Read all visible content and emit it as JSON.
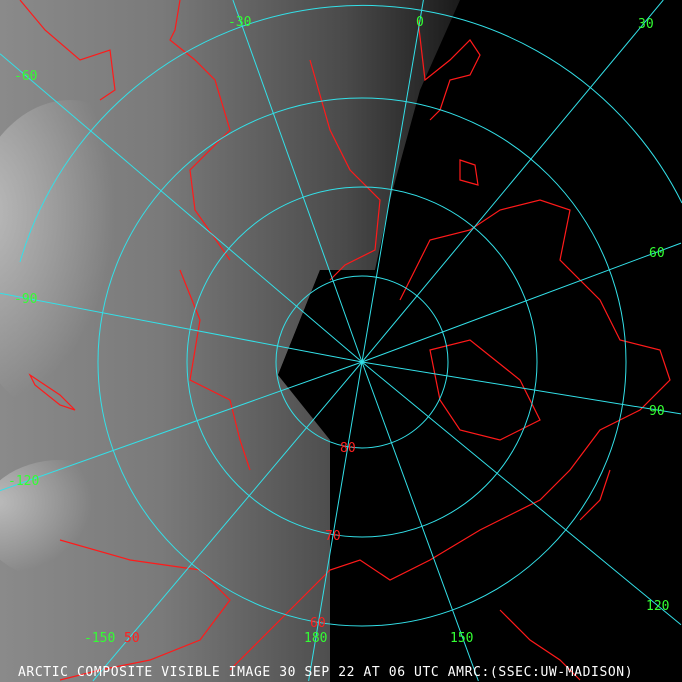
{
  "caption": "ARCTIC COMPOSITE VISIBLE IMAGE 30 SEP 22 AT 06 UTC AMRC:(SSEC:UW-MADISON)",
  "colors": {
    "graticule": "#33e0e8",
    "coastline": "#ff1a1a",
    "longitude_labels": "#33ff33",
    "latitude_labels": "#ff2020",
    "caption": "#ffffff"
  },
  "longitude_labels": [
    "-30",
    "0",
    "30",
    "-60",
    "60",
    "-90",
    "90",
    "-120",
    "120",
    "-150",
    "150",
    "180"
  ],
  "latitude_labels": [
    "80",
    "70",
    "60",
    "50"
  ]
}
